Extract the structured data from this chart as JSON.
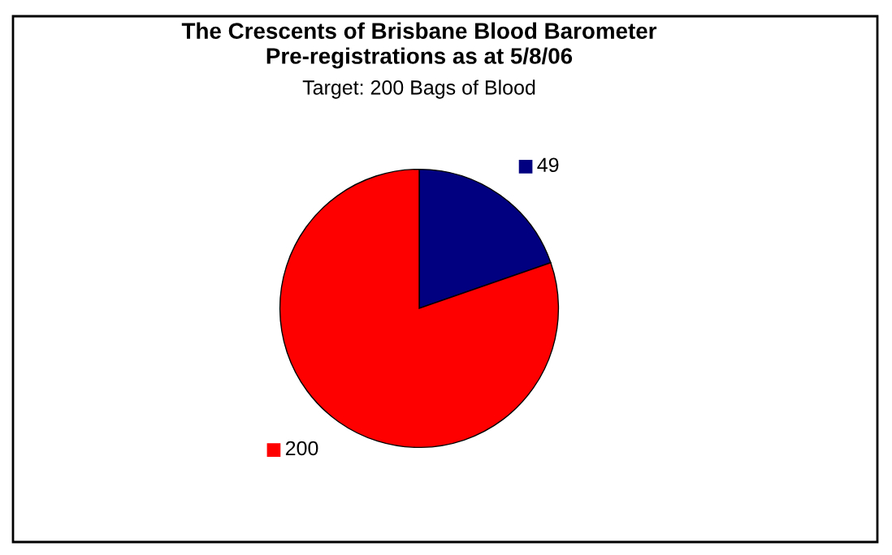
{
  "chart_data": {
    "type": "pie",
    "title": "The Crescents of Brisbane Blood Barometer\nPre-registrations as at 5/8/06",
    "subtitle": "Target: 200 Bags of Blood",
    "categories": [
      null,
      null
    ],
    "values": [
      49,
      200
    ],
    "colors": [
      "#000080",
      "#ff0000"
    ],
    "data_labels": true
  }
}
